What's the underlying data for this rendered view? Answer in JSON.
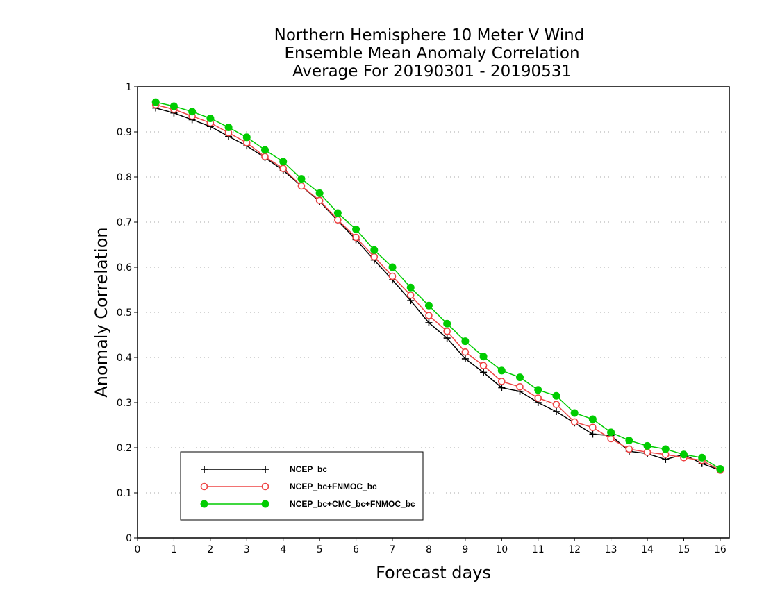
{
  "chart_data": {
    "type": "line",
    "title": [
      "Northern Hemisphere 10 Meter V Wind",
      "Ensemble Mean Anomaly Correlation",
      "Average For 20190301 - 20190531"
    ],
    "xlabel": "Forecast days",
    "ylabel": "Anomaly Correlation",
    "xlim": [
      0,
      16.25
    ],
    "ylim": [
      0,
      1
    ],
    "xticks": [
      0,
      1,
      2,
      3,
      4,
      5,
      6,
      7,
      8,
      9,
      10,
      11,
      12,
      13,
      14,
      15,
      16
    ],
    "yticks": [
      0,
      0.1,
      0.2,
      0.3,
      0.4,
      0.5,
      0.6,
      0.7,
      0.8,
      0.9,
      1
    ],
    "xtick_labels": [
      "0",
      "1",
      "2",
      "3",
      "4",
      "5",
      "6",
      "7",
      "8",
      "9",
      "10",
      "11",
      "12",
      "13",
      "14",
      "15",
      "16"
    ],
    "ytick_labels": [
      "0",
      "0.1",
      "0.2",
      "0.3",
      "0.4",
      "0.5",
      "0.6",
      "0.7",
      "0.8",
      "0.9",
      "1"
    ],
    "grid": "horizontal dotted",
    "legend_position": "bottom-left",
    "x": [
      0.5,
      1,
      1.5,
      2,
      2.5,
      3,
      3.5,
      4,
      4.5,
      5,
      5.5,
      6,
      6.5,
      7,
      7.5,
      8,
      8.5,
      9,
      9.5,
      10,
      10.5,
      11,
      11.5,
      12,
      12.5,
      13,
      13.5,
      14,
      14.5,
      15,
      15.5,
      16
    ],
    "series": [
      {
        "name": "NCEP_bc",
        "color": "#000000",
        "marker": "plus",
        "values": [
          0.953,
          0.942,
          0.927,
          0.912,
          0.89,
          0.869,
          0.843,
          0.815,
          0.78,
          0.746,
          0.703,
          0.661,
          0.616,
          0.572,
          0.526,
          0.477,
          0.443,
          0.397,
          0.367,
          0.333,
          0.325,
          0.3,
          0.28,
          0.255,
          0.23,
          0.227,
          0.192,
          0.187,
          0.174,
          0.185,
          0.165,
          0.15
        ]
      },
      {
        "name": "NCEP_bc+FNMOC_bc",
        "color": "#ee4444",
        "marker": "open-circle",
        "values": [
          0.96,
          0.95,
          0.935,
          0.92,
          0.898,
          0.876,
          0.845,
          0.819,
          0.78,
          0.748,
          0.705,
          0.666,
          0.623,
          0.58,
          0.538,
          0.493,
          0.458,
          0.412,
          0.382,
          0.347,
          0.335,
          0.31,
          0.296,
          0.257,
          0.245,
          0.22,
          0.197,
          0.19,
          0.185,
          0.178,
          0.172,
          0.15
        ]
      },
      {
        "name": "NCEP_bc+CMC_bc+FNMOC_bc",
        "color": "#00cc00",
        "marker": "filled-circle",
        "values": [
          0.966,
          0.957,
          0.945,
          0.93,
          0.91,
          0.888,
          0.86,
          0.834,
          0.796,
          0.764,
          0.72,
          0.684,
          0.638,
          0.6,
          0.555,
          0.515,
          0.475,
          0.436,
          0.402,
          0.371,
          0.356,
          0.328,
          0.315,
          0.277,
          0.263,
          0.234,
          0.216,
          0.204,
          0.197,
          0.185,
          0.178,
          0.153
        ]
      }
    ]
  }
}
